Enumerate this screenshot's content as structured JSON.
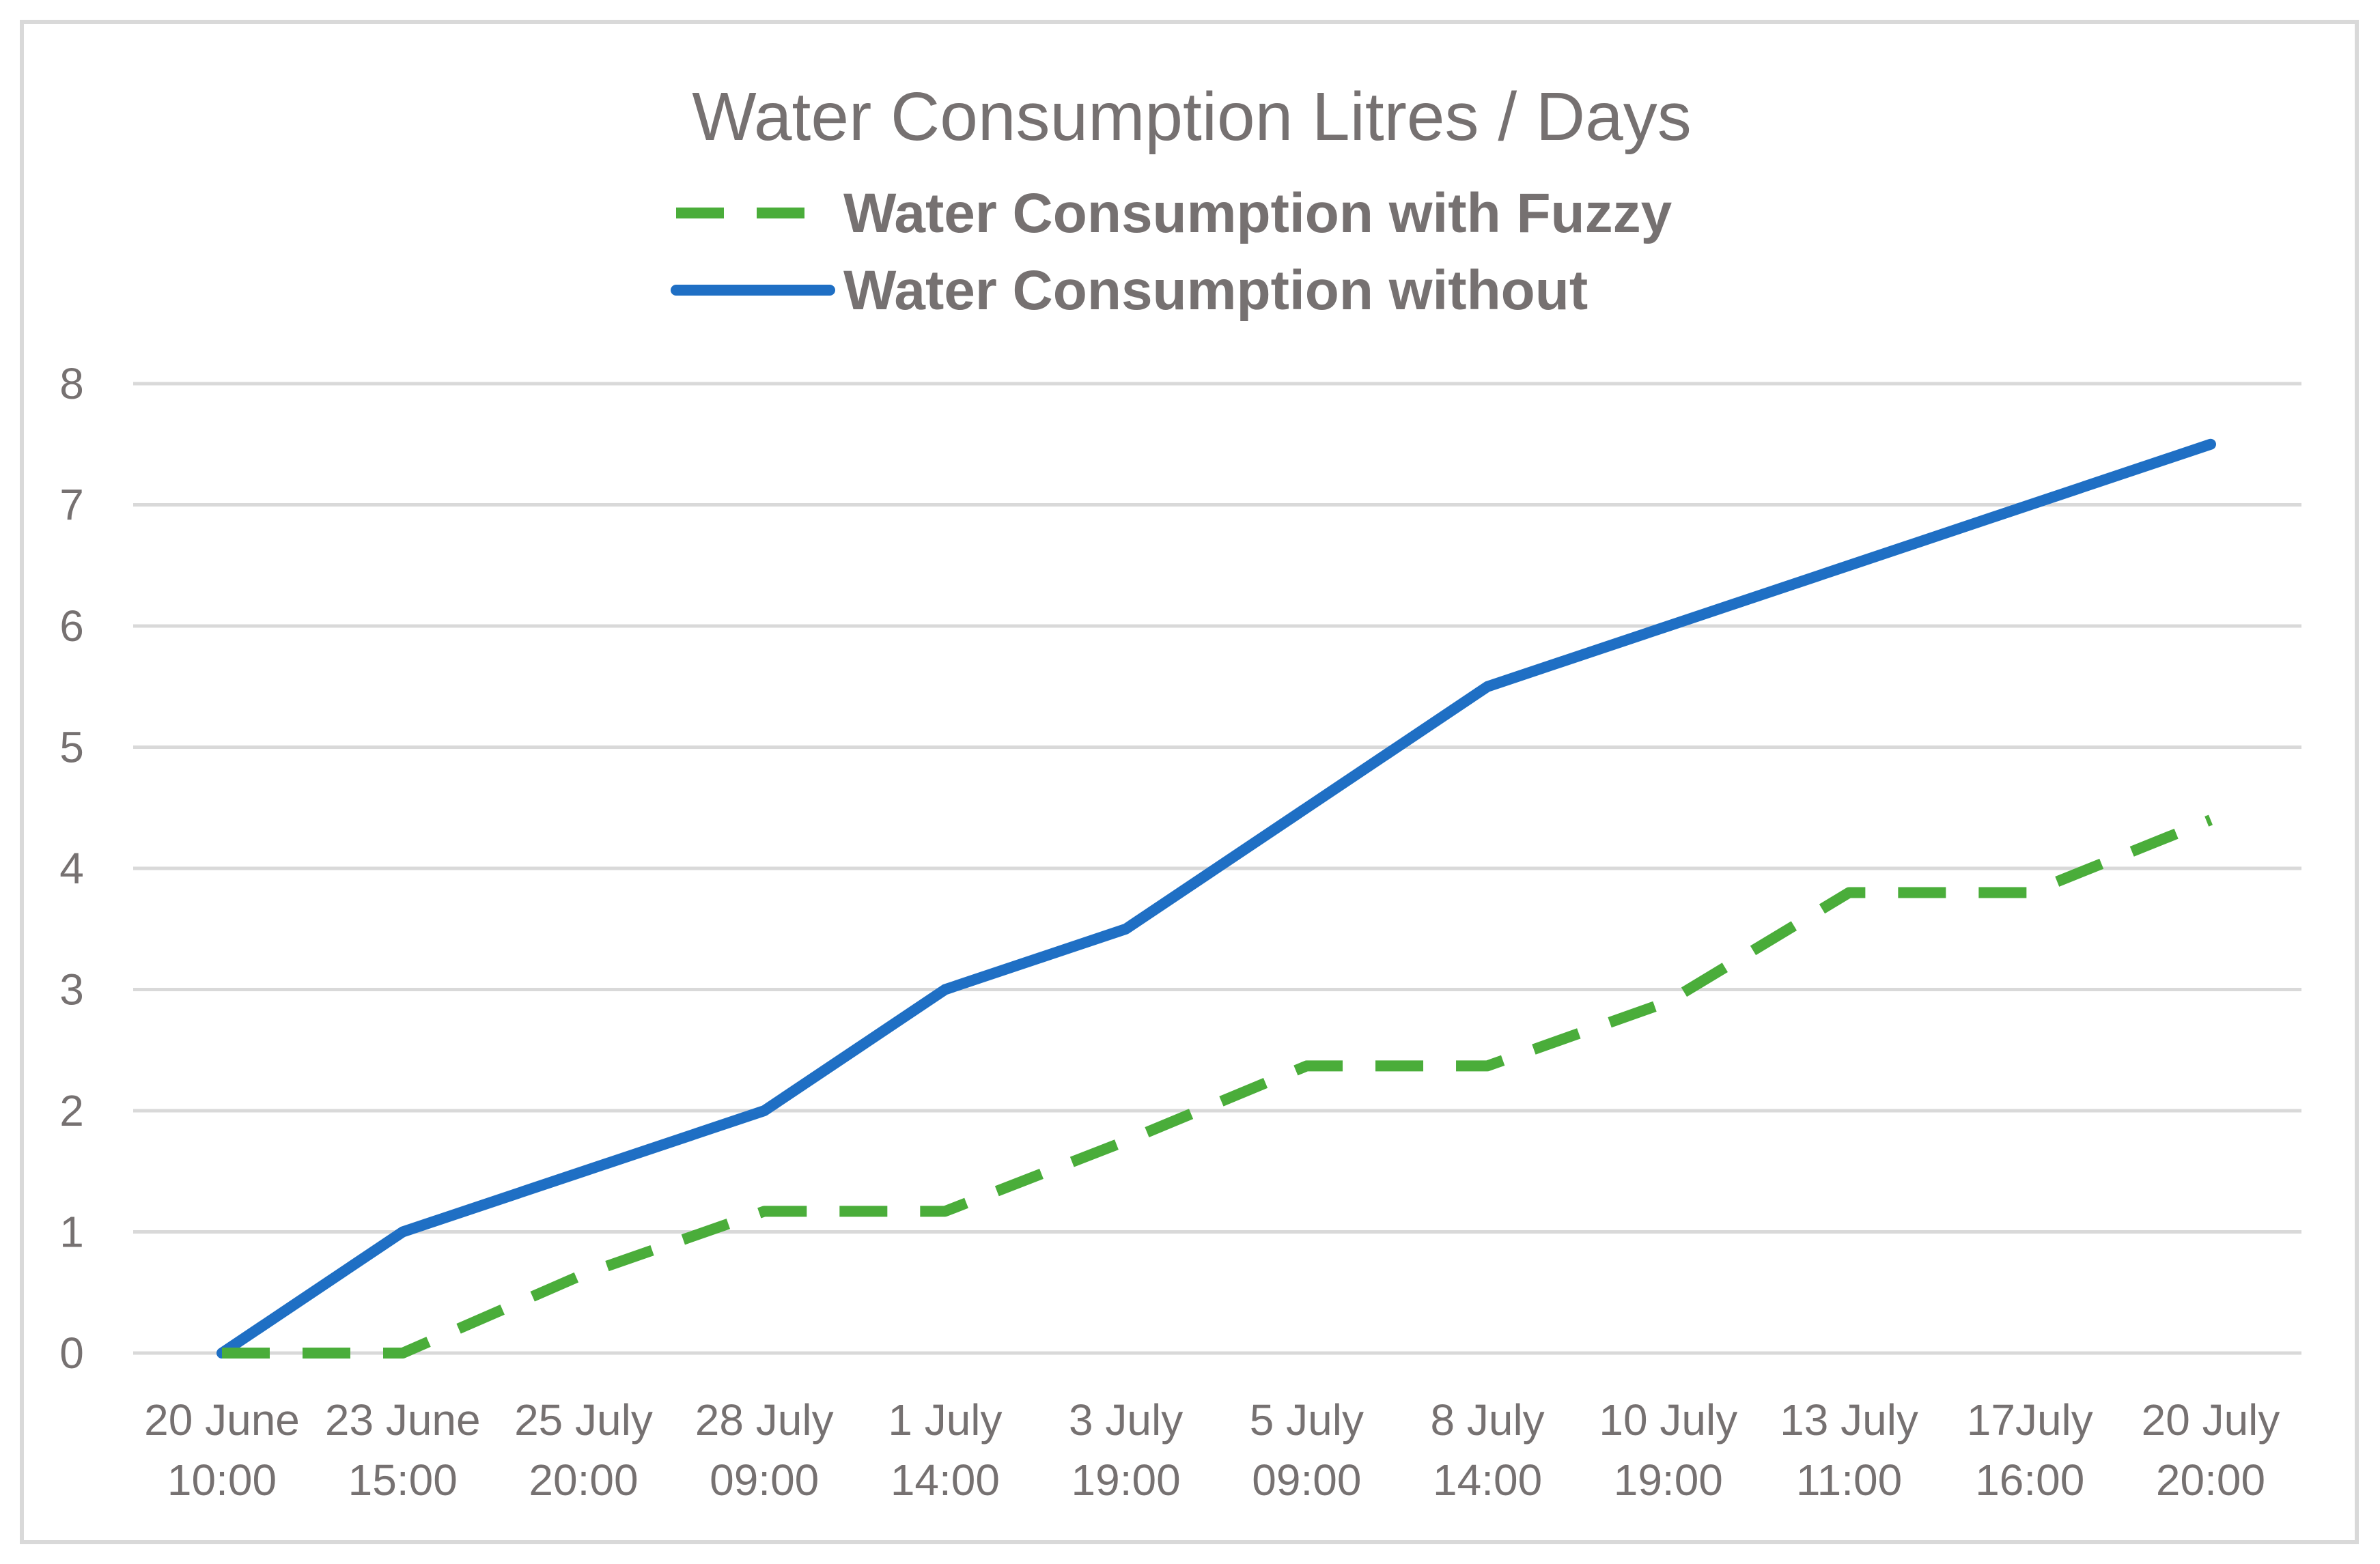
{
  "chart_data": {
    "type": "line",
    "title": "Water Consumption Litres / Days",
    "xlabel": "",
    "ylabel": "",
    "categories": [
      [
        "20 June",
        "10:00"
      ],
      [
        "23 June",
        "15:00"
      ],
      [
        "25 July",
        "20:00"
      ],
      [
        "28 July",
        "09:00"
      ],
      [
        "1 July",
        "14:00"
      ],
      [
        "3 July",
        "19:00"
      ],
      [
        "5 July",
        "09:00"
      ],
      [
        "8 July",
        "14:00"
      ],
      [
        "10 July",
        "19:00"
      ],
      [
        "13 July",
        "11:00"
      ],
      [
        "17July",
        "16:00"
      ],
      [
        "20 July",
        "20:00"
      ]
    ],
    "ylim": [
      0,
      8
    ],
    "yticks": [
      "0",
      "1",
      "2",
      "3",
      "4",
      "5",
      "6",
      "7",
      "8"
    ],
    "grid": true,
    "legend_position": "top",
    "series": [
      {
        "name": "Water Consumption with Fuzzy",
        "color": "#4aad3a",
        "style": "dashed",
        "values": [
          0,
          0,
          0.65,
          1.17,
          1.17,
          1.75,
          2.37,
          2.37,
          2.9,
          3.8,
          3.8,
          4.4
        ]
      },
      {
        "name": "Water Consumption without",
        "color": "#1f6fc4",
        "style": "solid",
        "values": [
          0,
          1,
          1.5,
          2,
          3,
          3.5,
          4.5,
          5.5,
          6,
          6.5,
          7,
          7.5
        ]
      }
    ]
  }
}
